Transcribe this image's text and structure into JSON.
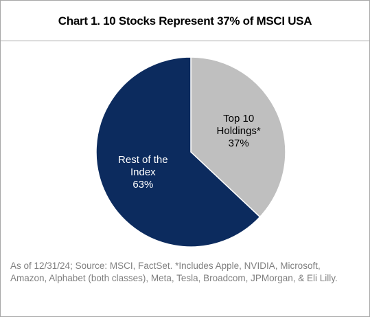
{
  "chart_data": {
    "type": "pie",
    "title": "Chart 1. 10 Stocks Represent 37% of MSCI USA",
    "categories": [
      "Top 10 Holdings*",
      "Rest of the Index"
    ],
    "values": [
      37,
      63
    ],
    "value_labels": [
      "37%",
      "63%"
    ],
    "colors": [
      "#bfbfbf",
      "#0c2b5e"
    ],
    "note": "As of 12/31/24; Source: MSCI, FactSet. *Includes Apple, NVIDIA, Microsoft, Amazon, Alphabet (both classes), Meta, Tesla, Broadcom, JPMorgan, & Eli Lilly."
  }
}
